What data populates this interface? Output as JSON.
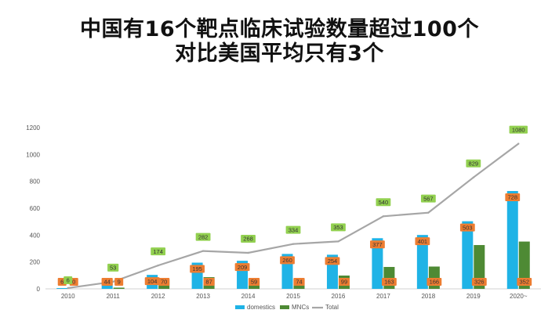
{
  "title": {
    "line1": "中国有16个靶点临床试验数量超过100个",
    "line2": "对比美国平均只有3个"
  },
  "chart_data": {
    "type": "bar",
    "categories": [
      "2010",
      "2011",
      "2012",
      "2013",
      "2014",
      "2015",
      "2016",
      "2017",
      "2018",
      "2019",
      "2020~"
    ],
    "series": [
      {
        "name": "domestics",
        "type": "bar",
        "color": "#1fb3e6",
        "values": [
          6,
          44,
          104,
          195,
          209,
          260,
          254,
          377,
          401,
          503,
          728
        ]
      },
      {
        "name": "MNCs",
        "type": "bar",
        "color": "#4e8a34",
        "values": [
          0,
          9,
          70,
          87,
          59,
          74,
          99,
          163,
          166,
          326,
          352
        ]
      },
      {
        "name": "Total",
        "type": "line",
        "color": "#a6a6a6",
        "values": [
          6,
          53,
          174,
          282,
          268,
          334,
          353,
          540,
          567,
          829,
          1080
        ]
      }
    ],
    "yticks": [
      0,
      200,
      400,
      600,
      800,
      1000,
      1200
    ],
    "ylim": [
      0,
      1200
    ],
    "legend_position": "bottom-center",
    "label_colors": {
      "bar": "#ed7d31",
      "line": "#92d050"
    }
  }
}
